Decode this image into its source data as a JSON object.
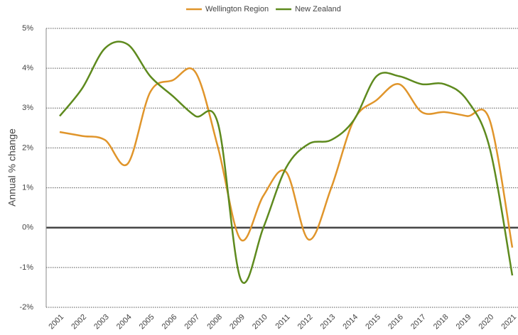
{
  "chart_data": {
    "type": "line",
    "y_label": "Annual % change",
    "categories": [
      "2001",
      "2002",
      "2003",
      "2004",
      "2005",
      "2006",
      "2007",
      "2008",
      "2009",
      "2010",
      "2011",
      "2012",
      "2013",
      "2014",
      "2015",
      "2016",
      "2017",
      "2018",
      "2019",
      "2020",
      "2021"
    ],
    "series": [
      {
        "name": "Wellington Region",
        "color": "#e0952b",
        "values": [
          2.4,
          2.3,
          2.2,
          1.6,
          3.4,
          3.7,
          3.9,
          2.0,
          -0.3,
          0.8,
          1.4,
          -0.3,
          1.0,
          2.7,
          3.2,
          3.6,
          2.9,
          2.9,
          2.8,
          2.7,
          -0.5
        ]
      },
      {
        "name": "New Zealand",
        "color": "#5e8a1e",
        "values": [
          2.8,
          3.5,
          4.5,
          4.6,
          3.8,
          3.3,
          2.8,
          2.6,
          -1.3,
          0.0,
          1.5,
          2.1,
          2.2,
          2.7,
          3.8,
          3.8,
          3.6,
          3.6,
          3.2,
          2.0,
          -1.2
        ]
      }
    ],
    "ylim": [
      -2,
      5
    ],
    "yticks": [
      {
        "value": -2,
        "label": "-2%"
      },
      {
        "value": -1,
        "label": "-1%"
      },
      {
        "value": 0,
        "label": "0%"
      },
      {
        "value": 1,
        "label": "1%"
      },
      {
        "value": 2,
        "label": "2%"
      },
      {
        "value": 3,
        "label": "3%"
      },
      {
        "value": 4,
        "label": "4%"
      },
      {
        "value": 5,
        "label": "5%"
      }
    ],
    "grid": true,
    "legend": "top"
  }
}
